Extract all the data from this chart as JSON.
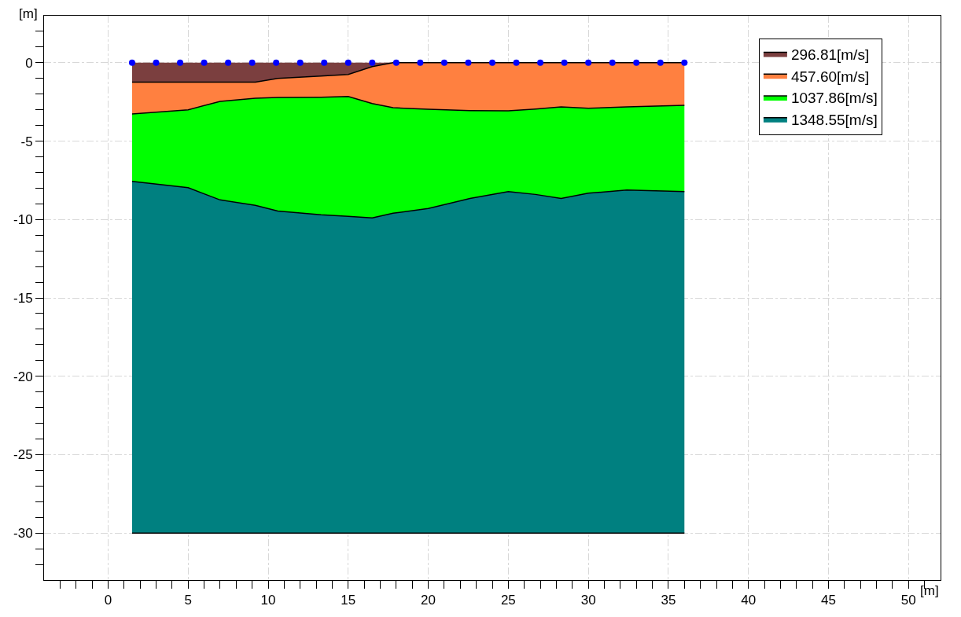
{
  "chart_data": {
    "type": "area",
    "stacked": true,
    "xlabel": "[m]",
    "ylabel": "[m]",
    "x": [
      1.5,
      5,
      7,
      9.2,
      10.6,
      13.3,
      15,
      16.5,
      17.8,
      20,
      22.6,
      25,
      26.7,
      28.3,
      30,
      32.4,
      36
    ],
    "series": [
      {
        "name": "296.81[m/s]",
        "color": "#7b3f3f",
        "values": [
          -1.24,
          -1.24,
          -1.24,
          -1.24,
          -1.0,
          -0.85,
          -0.75,
          -0.25,
          0,
          0,
          0,
          0,
          0,
          0,
          0,
          0,
          0
        ]
      },
      {
        "name": "457.60[m/s]",
        "color": "#ff8040",
        "values": [
          -2.03,
          -1.76,
          -1.23,
          -1.03,
          -1.22,
          -1.35,
          -1.4,
          -2.35,
          -2.87,
          -2.97,
          -3.05,
          -3.07,
          -2.95,
          -2.82,
          -2.9,
          -2.82,
          -2.72
        ]
      },
      {
        "name": "1037.86[m/s]",
        "color": "#00ff00",
        "values": [
          -4.3,
          -4.97,
          -6.28,
          -6.83,
          -7.24,
          -7.5,
          -7.65,
          -7.3,
          -6.73,
          -6.33,
          -5.61,
          -5.15,
          -5.45,
          -5.84,
          -5.42,
          -5.3,
          -5.5
        ]
      },
      {
        "name": "1348.55[m/s]",
        "color": "#008080",
        "values": [
          -22.43,
          -22.03,
          -21.25,
          -20.9,
          -20.54,
          -20.3,
          -20.2,
          -20.1,
          -20.4,
          -20.7,
          -21.34,
          -21.78,
          -21.6,
          -21.34,
          -21.68,
          -21.88,
          -21.78
        ]
      },
      {
        "type": "scatter",
        "color": "#0000ff",
        "marker": "circle",
        "x": [
          1.5,
          3,
          4.5,
          6,
          7.5,
          9,
          10.5,
          12,
          13.5,
          15,
          16.5,
          18,
          19.5,
          21,
          22.5,
          24,
          25.5,
          27,
          28.5,
          30,
          31.5,
          33,
          34.5,
          36
        ],
        "values": [
          0,
          0,
          0,
          0,
          0,
          0,
          0,
          0,
          0,
          0,
          0,
          0,
          0,
          0,
          0,
          0,
          0,
          0,
          0,
          0,
          0,
          0,
          0,
          0
        ]
      }
    ],
    "xlim": [
      -4,
      52
    ],
    "ylim": [
      -33,
      3
    ],
    "grid": true,
    "legend": "top right",
    "xticks": [
      {
        "value": -3,
        "label": null
      },
      {
        "value": -2,
        "label": null
      },
      {
        "value": -1,
        "label": null
      },
      0,
      {
        "value": 1,
        "label": null
      },
      {
        "value": 2,
        "label": null
      },
      {
        "value": 3,
        "label": null
      },
      {
        "value": 4,
        "label": null
      },
      5,
      {
        "value": 6,
        "label": null
      },
      {
        "value": 7,
        "label": null
      },
      {
        "value": 8,
        "label": null
      },
      {
        "value": 9,
        "label": null
      },
      10,
      {
        "value": 11,
        "label": null
      },
      {
        "value": 12,
        "label": null
      },
      {
        "value": 13,
        "label": null
      },
      {
        "value": 14,
        "label": null
      },
      15,
      {
        "value": 16,
        "label": null
      },
      {
        "value": 17,
        "label": null
      },
      {
        "value": 18,
        "label": null
      },
      {
        "value": 19,
        "label": null
      },
      20,
      {
        "value": 21,
        "label": null
      },
      {
        "value": 22,
        "label": null
      },
      {
        "value": 23,
        "label": null
      },
      {
        "value": 24,
        "label": null
      },
      25,
      {
        "value": 26,
        "label": null
      },
      {
        "value": 27,
        "label": null
      },
      {
        "value": 28,
        "label": null
      },
      {
        "value": 29,
        "label": null
      },
      30,
      {
        "value": 31,
        "label": null
      },
      {
        "value": 32,
        "label": null
      },
      {
        "value": 33,
        "label": null
      },
      {
        "value": 34,
        "label": null
      },
      35,
      {
        "value": 36,
        "label": null
      },
      {
        "value": 37,
        "label": null
      },
      {
        "value": 38,
        "label": null
      },
      {
        "value": 39,
        "label": null
      },
      40,
      {
        "value": 41,
        "label": null
      },
      {
        "value": 42,
        "label": null
      },
      {
        "value": 43,
        "label": null
      },
      {
        "value": 44,
        "label": null
      },
      45,
      {
        "value": 46,
        "label": null
      },
      {
        "value": 47,
        "label": null
      },
      {
        "value": 48,
        "label": null
      },
      {
        "value": 49,
        "label": null
      },
      50,
      {
        "value": 51,
        "label": null
      }
    ],
    "yticks": [
      {
        "value": -32,
        "label": null
      },
      {
        "value": -31,
        "label": null
      },
      -30,
      {
        "value": -29,
        "label": null
      },
      {
        "value": -28,
        "label": null
      },
      {
        "value": -27,
        "label": null
      },
      {
        "value": -26,
        "label": null
      },
      -25,
      {
        "value": -24,
        "label": null
      },
      {
        "value": -23,
        "label": null
      },
      {
        "value": -22,
        "label": null
      },
      {
        "value": -21,
        "label": null
      },
      -20,
      {
        "value": -19,
        "label": null
      },
      {
        "value": -18,
        "label": null
      },
      {
        "value": -17,
        "label": null
      },
      {
        "value": -16,
        "label": null
      },
      -15,
      {
        "value": -14,
        "label": null
      },
      {
        "value": -13,
        "label": null
      },
      {
        "value": -12,
        "label": null
      },
      {
        "value": -11,
        "label": null
      },
      -10,
      {
        "value": -9,
        "label": null
      },
      {
        "value": -8,
        "label": null
      },
      {
        "value": -7,
        "label": null
      },
      {
        "value": -6,
        "label": null
      },
      -5,
      {
        "value": -4,
        "label": null
      },
      {
        "value": -3,
        "label": null
      },
      {
        "value": -2,
        "label": null
      },
      {
        "value": -1,
        "label": null
      },
      0,
      {
        "value": 1,
        "label": null
      },
      {
        "value": 2,
        "label": null
      }
    ]
  }
}
